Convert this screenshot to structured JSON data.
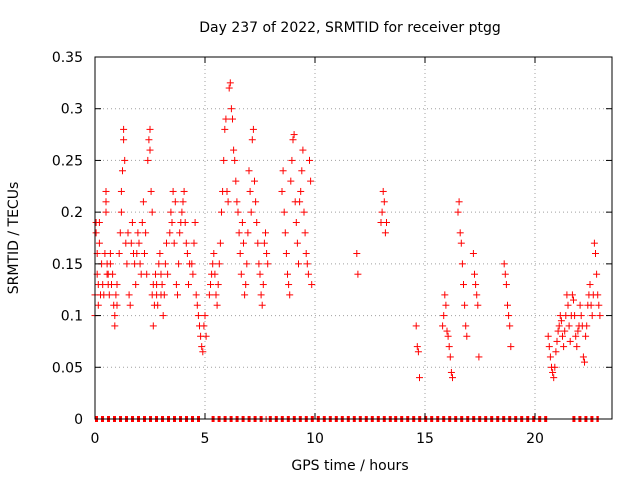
{
  "chart_data": {
    "type": "scatter",
    "title": "Day 237 of 2022, SRMTID for receiver ptgg",
    "xlabel": "GPS time / hours",
    "ylabel": "SRMTID / TECUs",
    "xlim": [
      0,
      23.5
    ],
    "ylim": [
      0,
      0.35
    ],
    "xticks": [
      0,
      5,
      10,
      15,
      20
    ],
    "yticks": [
      0,
      0.05,
      0.1,
      0.15,
      0.2,
      0.25,
      0.3,
      0.35
    ],
    "ytick_labels": [
      "0",
      "0.05",
      "0.1",
      "0.15",
      "0.2",
      "0.25",
      "0.3",
      "0.35"
    ],
    "grid": true,
    "marker": "+",
    "marker_color": "#ff0000",
    "series": [
      {
        "name": "SRMTID",
        "points": [
          [
            0.0,
            0.1
          ],
          [
            0.0,
            0.12
          ],
          [
            0.05,
            0.18
          ],
          [
            0.05,
            0.19
          ],
          [
            0.1,
            0.14
          ],
          [
            0.1,
            0.16
          ],
          [
            0.15,
            0.11
          ],
          [
            0.15,
            0.13
          ],
          [
            0.2,
            0.17
          ],
          [
            0.2,
            0.19
          ],
          [
            0.25,
            0.12
          ],
          [
            0.3,
            0.15
          ],
          [
            0.35,
            0.13
          ],
          [
            0.4,
            0.12
          ],
          [
            0.45,
            0.16
          ],
          [
            0.5,
            0.2
          ],
          [
            0.5,
            0.22
          ],
          [
            0.5,
            0.21
          ],
          [
            0.55,
            0.14
          ],
          [
            0.55,
            0.15
          ],
          [
            0.6,
            0.13
          ],
          [
            0.6,
            0.14
          ],
          [
            0.65,
            0.12
          ],
          [
            0.7,
            0.15
          ],
          [
            0.7,
            0.16
          ],
          [
            0.75,
            0.13
          ],
          [
            0.8,
            0.14
          ],
          [
            0.85,
            0.11
          ],
          [
            0.9,
            0.1
          ],
          [
            0.9,
            0.09
          ],
          [
            0.95,
            0.12
          ],
          [
            1.0,
            0.11
          ],
          [
            1.0,
            0.13
          ],
          [
            1.1,
            0.16
          ],
          [
            1.15,
            0.18
          ],
          [
            1.2,
            0.2
          ],
          [
            1.2,
            0.22
          ],
          [
            1.25,
            0.24
          ],
          [
            1.3,
            0.27
          ],
          [
            1.3,
            0.28
          ],
          [
            1.35,
            0.25
          ],
          [
            1.4,
            0.17
          ],
          [
            1.45,
            0.15
          ],
          [
            1.5,
            0.18
          ],
          [
            1.55,
            0.12
          ],
          [
            1.6,
            0.11
          ],
          [
            1.65,
            0.17
          ],
          [
            1.7,
            0.19
          ],
          [
            1.75,
            0.16
          ],
          [
            1.8,
            0.15
          ],
          [
            1.85,
            0.13
          ],
          [
            1.9,
            0.16
          ],
          [
            1.95,
            0.18
          ],
          [
            2.0,
            0.17
          ],
          [
            2.05,
            0.15
          ],
          [
            2.1,
            0.14
          ],
          [
            2.15,
            0.19
          ],
          [
            2.2,
            0.21
          ],
          [
            2.25,
            0.16
          ],
          [
            2.3,
            0.18
          ],
          [
            2.35,
            0.14
          ],
          [
            2.4,
            0.25
          ],
          [
            2.45,
            0.27
          ],
          [
            2.5,
            0.26
          ],
          [
            2.5,
            0.28
          ],
          [
            2.55,
            0.22
          ],
          [
            2.6,
            0.2
          ],
          [
            2.6,
            0.12
          ],
          [
            2.65,
            0.13
          ],
          [
            2.65,
            0.09
          ],
          [
            2.7,
            0.11
          ],
          [
            2.75,
            0.14
          ],
          [
            2.8,
            0.12
          ],
          [
            2.8,
            0.13
          ],
          [
            2.85,
            0.11
          ],
          [
            2.9,
            0.15
          ],
          [
            2.95,
            0.16
          ],
          [
            3.0,
            0.12
          ],
          [
            3.0,
            0.14
          ],
          [
            3.05,
            0.13
          ],
          [
            3.1,
            0.1
          ],
          [
            3.15,
            0.12
          ],
          [
            3.2,
            0.15
          ],
          [
            3.25,
            0.17
          ],
          [
            3.3,
            0.14
          ],
          [
            3.4,
            0.18
          ],
          [
            3.45,
            0.2
          ],
          [
            3.5,
            0.19
          ],
          [
            3.55,
            0.22
          ],
          [
            3.6,
            0.17
          ],
          [
            3.65,
            0.21
          ],
          [
            3.7,
            0.13
          ],
          [
            3.75,
            0.12
          ],
          [
            3.8,
            0.15
          ],
          [
            3.85,
            0.18
          ],
          [
            3.9,
            0.19
          ],
          [
            3.95,
            0.2
          ],
          [
            4.0,
            0.21
          ],
          [
            4.05,
            0.22
          ],
          [
            4.1,
            0.19
          ],
          [
            4.15,
            0.17
          ],
          [
            4.2,
            0.16
          ],
          [
            4.25,
            0.13
          ],
          [
            4.3,
            0.15
          ],
          [
            4.4,
            0.15
          ],
          [
            4.45,
            0.14
          ],
          [
            4.5,
            0.17
          ],
          [
            4.55,
            0.19
          ],
          [
            4.6,
            0.12
          ],
          [
            4.65,
            0.11
          ],
          [
            4.7,
            0.1
          ],
          [
            4.75,
            0.09
          ],
          [
            4.8,
            0.08
          ],
          [
            4.85,
            0.07
          ],
          [
            4.9,
            0.065
          ],
          [
            4.95,
            0.09
          ],
          [
            5.0,
            0.1
          ],
          [
            5.05,
            0.08
          ],
          [
            5.2,
            0.12
          ],
          [
            5.25,
            0.13
          ],
          [
            5.3,
            0.14
          ],
          [
            5.35,
            0.15
          ],
          [
            5.4,
            0.16
          ],
          [
            5.45,
            0.14
          ],
          [
            5.5,
            0.12
          ],
          [
            5.55,
            0.11
          ],
          [
            5.6,
            0.13
          ],
          [
            5.65,
            0.15
          ],
          [
            5.7,
            0.17
          ],
          [
            5.75,
            0.2
          ],
          [
            5.8,
            0.22
          ],
          [
            5.85,
            0.25
          ],
          [
            5.9,
            0.28
          ],
          [
            5.95,
            0.29
          ],
          [
            6.0,
            0.22
          ],
          [
            6.05,
            0.21
          ],
          [
            6.1,
            0.32
          ],
          [
            6.15,
            0.325
          ],
          [
            6.2,
            0.3
          ],
          [
            6.25,
            0.29
          ],
          [
            6.3,
            0.26
          ],
          [
            6.35,
            0.25
          ],
          [
            6.4,
            0.23
          ],
          [
            6.45,
            0.21
          ],
          [
            6.5,
            0.2
          ],
          [
            6.55,
            0.18
          ],
          [
            6.6,
            0.16
          ],
          [
            6.65,
            0.14
          ],
          [
            6.7,
            0.19
          ],
          [
            6.75,
            0.17
          ],
          [
            6.8,
            0.12
          ],
          [
            6.85,
            0.13
          ],
          [
            6.9,
            0.15
          ],
          [
            6.95,
            0.18
          ],
          [
            7.0,
            0.24
          ],
          [
            7.05,
            0.22
          ],
          [
            7.1,
            0.2
          ],
          [
            7.15,
            0.27
          ],
          [
            7.2,
            0.28
          ],
          [
            7.25,
            0.23
          ],
          [
            7.3,
            0.21
          ],
          [
            7.35,
            0.19
          ],
          [
            7.4,
            0.17
          ],
          [
            7.45,
            0.15
          ],
          [
            7.5,
            0.14
          ],
          [
            7.55,
            0.12
          ],
          [
            7.6,
            0.11
          ],
          [
            7.65,
            0.13
          ],
          [
            7.7,
            0.17
          ],
          [
            7.75,
            0.18
          ],
          [
            7.8,
            0.16
          ],
          [
            7.85,
            0.15
          ],
          [
            8.5,
            0.22
          ],
          [
            8.55,
            0.24
          ],
          [
            8.6,
            0.2
          ],
          [
            8.65,
            0.18
          ],
          [
            8.7,
            0.16
          ],
          [
            8.75,
            0.14
          ],
          [
            8.8,
            0.13
          ],
          [
            8.85,
            0.12
          ],
          [
            8.9,
            0.23
          ],
          [
            8.95,
            0.25
          ],
          [
            9.0,
            0.27
          ],
          [
            9.05,
            0.275
          ],
          [
            9.1,
            0.21
          ],
          [
            9.15,
            0.19
          ],
          [
            9.2,
            0.17
          ],
          [
            9.25,
            0.15
          ],
          [
            9.3,
            0.21
          ],
          [
            9.35,
            0.22
          ],
          [
            9.4,
            0.24
          ],
          [
            9.45,
            0.26
          ],
          [
            9.5,
            0.2
          ],
          [
            9.55,
            0.18
          ],
          [
            9.6,
            0.16
          ],
          [
            9.65,
            0.15
          ],
          [
            9.7,
            0.14
          ],
          [
            9.75,
            0.25
          ],
          [
            9.8,
            0.23
          ],
          [
            9.85,
            0.13
          ],
          [
            11.9,
            0.16
          ],
          [
            11.95,
            0.14
          ],
          [
            13.0,
            0.19
          ],
          [
            13.05,
            0.2
          ],
          [
            13.1,
            0.22
          ],
          [
            13.15,
            0.21
          ],
          [
            13.2,
            0.18
          ],
          [
            13.25,
            0.19
          ],
          [
            14.6,
            0.09
          ],
          [
            14.65,
            0.07
          ],
          [
            14.7,
            0.065
          ],
          [
            14.75,
            0.04
          ],
          [
            15.8,
            0.09
          ],
          [
            15.85,
            0.1
          ],
          [
            15.9,
            0.12
          ],
          [
            15.95,
            0.11
          ],
          [
            16.0,
            0.085
          ],
          [
            16.05,
            0.08
          ],
          [
            16.1,
            0.07
          ],
          [
            16.15,
            0.06
          ],
          [
            16.2,
            0.045
          ],
          [
            16.25,
            0.04
          ],
          [
            16.5,
            0.2
          ],
          [
            16.55,
            0.21
          ],
          [
            16.6,
            0.18
          ],
          [
            16.65,
            0.17
          ],
          [
            16.7,
            0.15
          ],
          [
            16.75,
            0.13
          ],
          [
            16.8,
            0.11
          ],
          [
            16.85,
            0.09
          ],
          [
            16.9,
            0.08
          ],
          [
            17.2,
            0.16
          ],
          [
            17.25,
            0.14
          ],
          [
            17.3,
            0.13
          ],
          [
            17.35,
            0.12
          ],
          [
            17.4,
            0.11
          ],
          [
            17.45,
            0.06
          ],
          [
            18.6,
            0.15
          ],
          [
            18.65,
            0.14
          ],
          [
            18.7,
            0.13
          ],
          [
            18.75,
            0.11
          ],
          [
            18.8,
            0.1
          ],
          [
            18.85,
            0.09
          ],
          [
            18.9,
            0.07
          ],
          [
            20.6,
            0.08
          ],
          [
            20.65,
            0.07
          ],
          [
            20.7,
            0.06
          ],
          [
            20.75,
            0.05
          ],
          [
            20.8,
            0.045
          ],
          [
            20.85,
            0.04
          ],
          [
            20.9,
            0.05
          ],
          [
            20.95,
            0.065
          ],
          [
            21.0,
            0.075
          ],
          [
            21.05,
            0.085
          ],
          [
            21.1,
            0.09
          ],
          [
            21.15,
            0.1
          ],
          [
            21.2,
            0.095
          ],
          [
            21.25,
            0.08
          ],
          [
            21.3,
            0.07
          ],
          [
            21.35,
            0.085
          ],
          [
            21.4,
            0.1
          ],
          [
            21.45,
            0.12
          ],
          [
            21.5,
            0.11
          ],
          [
            21.55,
            0.09
          ],
          [
            21.6,
            0.075
          ],
          [
            21.65,
            0.1
          ],
          [
            21.7,
            0.12
          ],
          [
            21.75,
            0.115
          ],
          [
            21.8,
            0.1
          ],
          [
            21.85,
            0.08
          ],
          [
            21.9,
            0.07
          ],
          [
            21.95,
            0.085
          ],
          [
            22.0,
            0.09
          ],
          [
            22.05,
            0.11
          ],
          [
            22.1,
            0.1
          ],
          [
            22.15,
            0.09
          ],
          [
            22.2,
            0.06
          ],
          [
            22.25,
            0.055
          ],
          [
            22.3,
            0.08
          ],
          [
            22.35,
            0.09
          ],
          [
            22.4,
            0.11
          ],
          [
            22.45,
            0.12
          ],
          [
            22.5,
            0.13
          ],
          [
            22.55,
            0.11
          ],
          [
            22.6,
            0.1
          ],
          [
            22.65,
            0.12
          ],
          [
            22.7,
            0.17
          ],
          [
            22.75,
            0.16
          ],
          [
            22.8,
            0.14
          ],
          [
            22.85,
            0.12
          ],
          [
            22.9,
            0.11
          ],
          [
            22.95,
            0.1
          ]
        ]
      },
      {
        "name": "SRMTID zero baseline",
        "x_ranges": [
          [
            0.0,
            4.9
          ],
          [
            5.3,
            7.8
          ],
          [
            7.9,
            13.5
          ],
          [
            13.6,
            20.6
          ],
          [
            21.7,
            22.9
          ]
        ],
        "y": 0
      }
    ]
  }
}
